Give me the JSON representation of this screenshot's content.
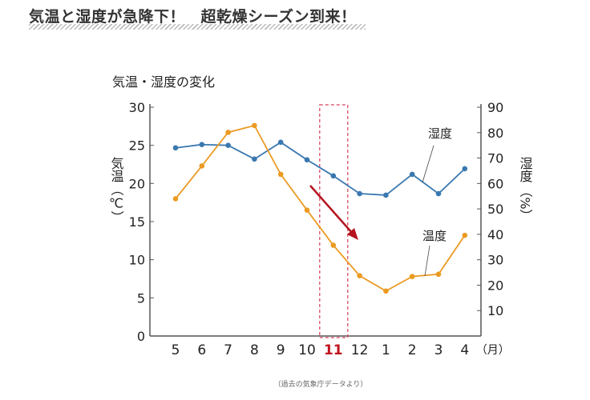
{
  "headline": "気温と湿度が急降下！　超乾燥シーズン到来！",
  "chart_data": {
    "type": "line",
    "title": "気温・湿度の変化",
    "categories": [
      "5",
      "6",
      "7",
      "8",
      "9",
      "10",
      "11",
      "12",
      "1",
      "2",
      "3",
      "4"
    ],
    "x_unit": "（月）",
    "highlight_category": "11",
    "ylabel_left": "気温（℃）",
    "ylabel_left_parts": [
      "気温",
      "（℃）"
    ],
    "ylabel_right_parts": [
      "湿度",
      "（%）"
    ],
    "ylim_left": [
      0,
      30
    ],
    "yticks_left": [
      0,
      5,
      10,
      15,
      20,
      25,
      30
    ],
    "ylim_right": [
      0,
      90
    ],
    "yticks_right": [
      10,
      20,
      30,
      40,
      50,
      60,
      70,
      80,
      90
    ],
    "grid": false,
    "series": [
      {
        "name": "湿度",
        "axis": "right",
        "color": "#3a78b0",
        "values": [
          74,
          75.3,
          75,
          69.6,
          76.2,
          69.3,
          63,
          56,
          55.4,
          63.6,
          56,
          65.8
        ]
      },
      {
        "name": "温度",
        "axis": "left",
        "color": "#eb9a22",
        "values": [
          18.0,
          22.3,
          26.7,
          27.6,
          21.2,
          16.5,
          11.9,
          7.9,
          5.9,
          7.8,
          8.1,
          13.2
        ]
      }
    ],
    "source_note": "（過去の気象庁データより）",
    "arrow_color": "#b5131f"
  }
}
